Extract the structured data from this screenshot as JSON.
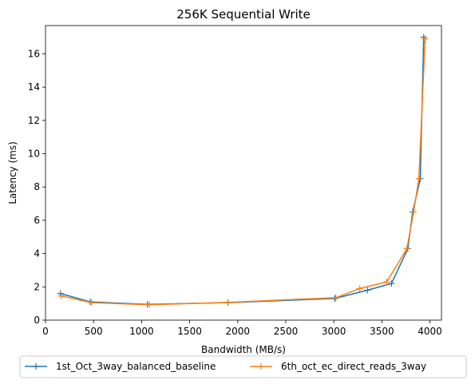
{
  "chart_data": {
    "type": "line",
    "title": "256K  Sequential Write",
    "xlabel": "Bandwidth (MB/s)",
    "ylabel": "Latency (ms)",
    "xlim": [
      0,
      4120
    ],
    "ylim": [
      0,
      17.7
    ],
    "xticks": [
      0,
      500,
      1000,
      1500,
      2000,
      2500,
      3000,
      3500,
      4000
    ],
    "yticks": [
      0,
      2,
      4,
      6,
      8,
      10,
      12,
      14,
      16
    ],
    "grid": false,
    "legend_position": "bottom-center, outside plot",
    "series": [
      {
        "name": "1st_Oct_3way_balanced_baseline",
        "color": "#1f77b4",
        "marker": "+",
        "x": [
          155,
          465,
          1060,
          1900,
          3010,
          3350,
          3600,
          3770,
          3820,
          3900,
          3935
        ],
        "y": [
          1.6,
          1.1,
          0.95,
          1.05,
          1.3,
          1.8,
          2.2,
          4.3,
          6.5,
          8.5,
          17.0
        ]
      },
      {
        "name": "6th_oct_ec_direct_reads_3way",
        "color": "#ff7f0e",
        "marker": "+",
        "x": [
          165,
          480,
          1080,
          1900,
          3020,
          3270,
          3550,
          3760,
          3830,
          3885,
          3950
        ],
        "y": [
          1.45,
          1.05,
          0.92,
          1.07,
          1.35,
          1.9,
          2.3,
          4.3,
          6.5,
          8.5,
          16.9
        ]
      }
    ]
  }
}
